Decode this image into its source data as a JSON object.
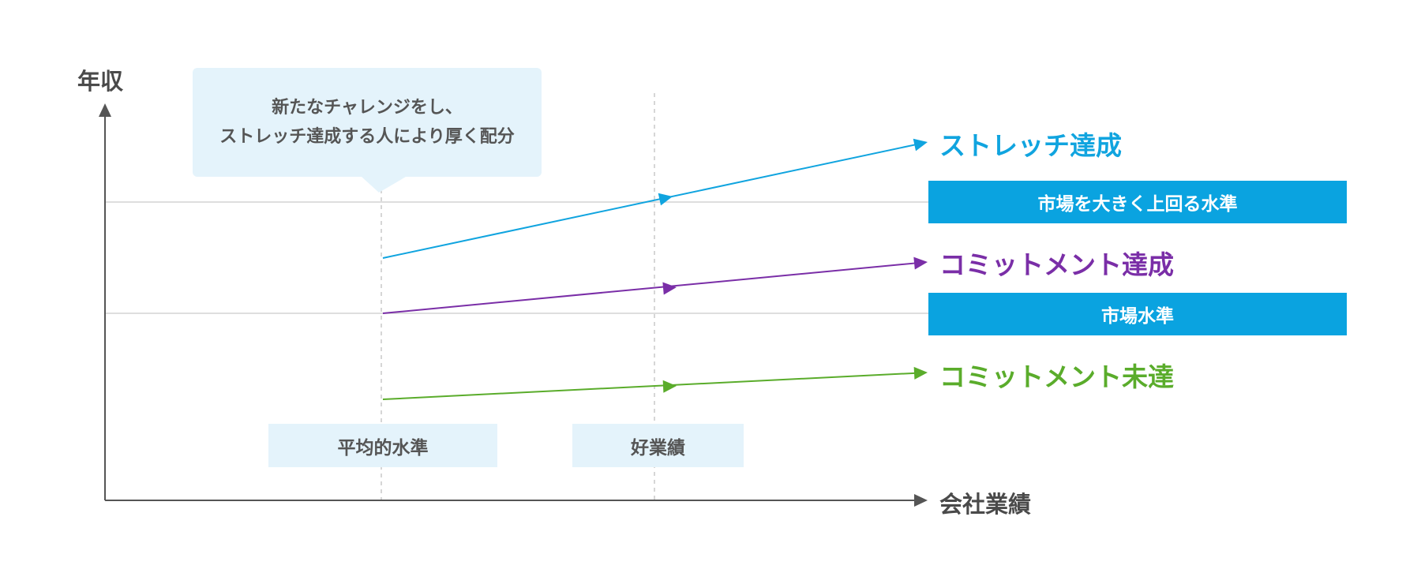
{
  "axes": {
    "y_label": "年収",
    "x_label": "会社業績"
  },
  "callout": {
    "lines": [
      "新たなチャレンジをし、",
      "ストレッチ達成する人により厚く配分"
    ],
    "text": "新たなチャレンジをし、\nストレッチ達成する人により厚く配分"
  },
  "series": [
    {
      "label": "ストレッチ達成",
      "color": "#10a4df"
    },
    {
      "label": "コミットメント達成",
      "color": "#7a2ea7"
    },
    {
      "label": "コミットメント未達",
      "color": "#5aac2b"
    }
  ],
  "levels": [
    {
      "label": "市場を大きく上回る水準"
    },
    {
      "label": "市場水準"
    }
  ],
  "x_markers": [
    {
      "label": "平均的水準"
    },
    {
      "label": "好業績"
    }
  ],
  "colors": {
    "axis": "#555555",
    "gridline": "#d3d3d3",
    "dashed": "#c8c8c8",
    "level_box": "#0aa3e0",
    "soft_box": "#e4f3fb"
  }
}
